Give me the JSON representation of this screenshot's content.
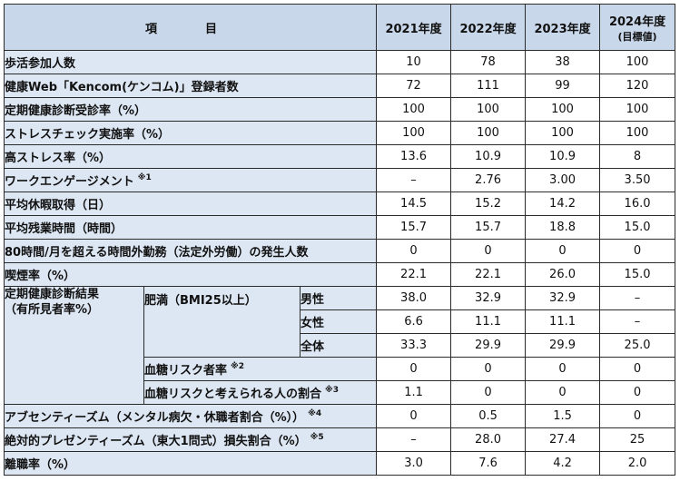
{
  "header": {
    "item": "項　目",
    "years": [
      "2021年度",
      "2022年度",
      "2023年度",
      "2024年度"
    ],
    "target_note": "(目標値)"
  },
  "rows": [
    {
      "label": "歩活参加人数",
      "note": "",
      "values": [
        "10",
        "78",
        "38",
        "100"
      ]
    },
    {
      "label": "健康Web「Kencom(ケンコム)」登録者数",
      "note": "",
      "values": [
        "72",
        "111",
        "99",
        "120"
      ]
    },
    {
      "label": "定期健康診断受診率（%）",
      "note": "",
      "values": [
        "100",
        "100",
        "100",
        "100"
      ]
    },
    {
      "label": "ストレスチェック実施率（%）",
      "note": "",
      "values": [
        "100",
        "100",
        "100",
        "100"
      ]
    },
    {
      "label": "高ストレス率（%）",
      "note": "",
      "values": [
        "13.6",
        "10.9",
        "10.9",
        "8"
      ]
    },
    {
      "label": "ワークエンゲージメント",
      "note": "※1",
      "values": [
        "–",
        "2.76",
        "3.00",
        "3.50"
      ]
    },
    {
      "label": "平均休暇取得（日）",
      "note": "",
      "values": [
        "14.5",
        "15.2",
        "14.2",
        "16.0"
      ]
    },
    {
      "label": "平均残業時間（時間）",
      "note": "",
      "values": [
        "15.7",
        "15.7",
        "18.8",
        "15.0"
      ]
    },
    {
      "label": "80時間/月を超える時間外勤務（法定外労働）の発生人数",
      "note": "",
      "values": [
        "0",
        "0",
        "0",
        "0"
      ]
    },
    {
      "label": "喫煙率（%）",
      "note": "",
      "values": [
        "22.1",
        "22.1",
        "26.0",
        "15.0"
      ]
    }
  ],
  "checkup": {
    "group_line1": "定期健康診断結果",
    "group_line2": "（有所見者率%）",
    "obesity_label": "肥満（BMI25以上）",
    "obesity_rows": [
      {
        "label": "男性",
        "values": [
          "38.0",
          "32.9",
          "32.9",
          "–"
        ]
      },
      {
        "label": "女性",
        "values": [
          "6.6",
          "11.1",
          "11.1",
          "–"
        ]
      },
      {
        "label": "全体",
        "values": [
          "33.3",
          "29.9",
          "29.9",
          "25.0"
        ]
      }
    ],
    "sub_rows": [
      {
        "label": "血糖リスク者率",
        "note": "※2",
        "values": [
          "0",
          "0",
          "0",
          "0"
        ]
      },
      {
        "label": "血糖リスクと考えられる人の割合",
        "note": "※3",
        "values": [
          "1.1",
          "0",
          "0",
          "0"
        ]
      }
    ]
  },
  "rows_bottom": [
    {
      "label": "アブセンティーズム（メンタル病欠・休職者割合（%））",
      "note": "※4",
      "values": [
        "0",
        "0.5",
        "1.5",
        "0"
      ]
    },
    {
      "label": "絶対的プレゼンティーズム（東大1問式）損失割合（%）",
      "note": "※5",
      "values": [
        "–",
        "28.0",
        "27.4",
        "25"
      ]
    },
    {
      "label": "離職率（%）",
      "note": "",
      "values": [
        "3.0",
        "7.6",
        "4.2",
        "2.0"
      ]
    }
  ]
}
